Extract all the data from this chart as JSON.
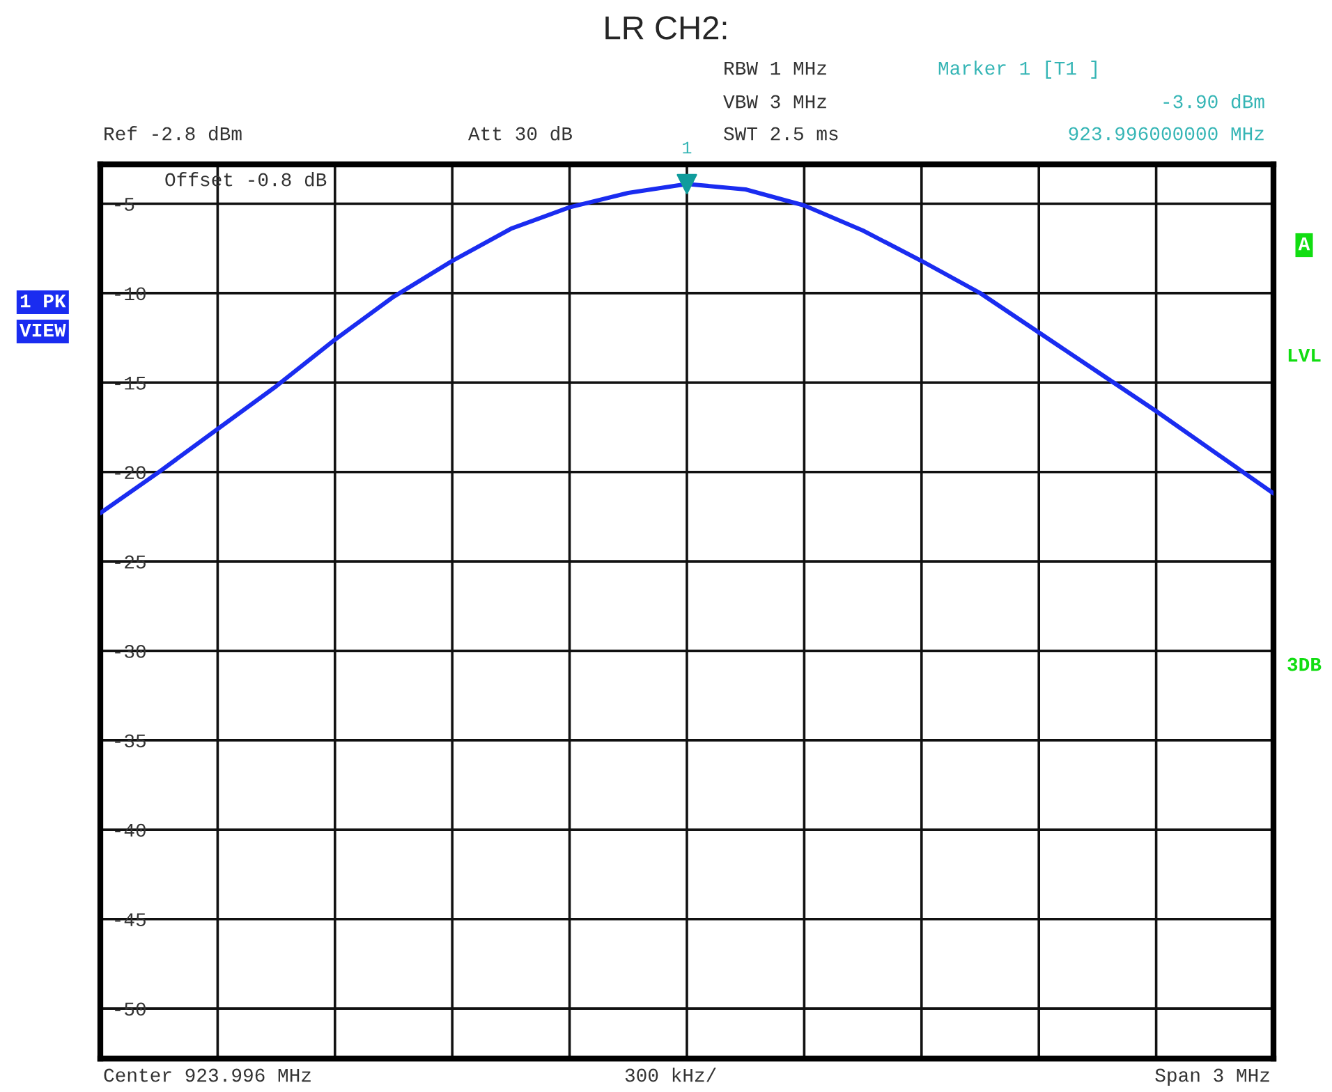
{
  "chart_data": {
    "type": "line",
    "title": "LR CH2:",
    "categories": [
      null,
      null,
      null,
      null,
      null,
      null,
      null,
      null,
      null,
      null,
      null,
      null,
      null,
      null,
      null,
      null,
      null,
      null,
      null,
      null,
      null
    ],
    "series": [
      {
        "color": "#1a2cf0",
        "values": [
          -22.3,
          -20.0,
          -17.6,
          -15.2,
          -12.6,
          -10.2,
          -8.2,
          -6.4,
          -5.2,
          -4.4,
          -3.9,
          -4.2,
          -5.1,
          -6.5,
          -8.2,
          -10.0,
          -12.2,
          -14.4,
          -16.6,
          -18.9,
          -21.2
        ]
      }
    ],
    "ylim": [
      -52.8,
      -2.8
    ],
    "yticks": [
      -5,
      -10,
      -15,
      -20,
      -25,
      -30,
      -35,
      -40,
      -45,
      -50
    ],
    "grid": true,
    "tick_labels": "y",
    "annotations": [
      "Ref -2.8 dBm",
      "Att 30 dB",
      "RBW 1 MHz",
      "VBW 3 MHz",
      "SWT 2.5 ms",
      "Marker 1 [T1 ]",
      "-3.90 dBm",
      "923.996000000 MHz",
      "Offset -0.8 dB",
      "1 PK",
      "VIEW",
      "A",
      "LVL",
      "3DB",
      "Center 923.996 MHz",
      "300 kHz/",
      "Span 3 MHz",
      {
        "text": "1",
        "y": -3.9
      }
    ]
  }
}
